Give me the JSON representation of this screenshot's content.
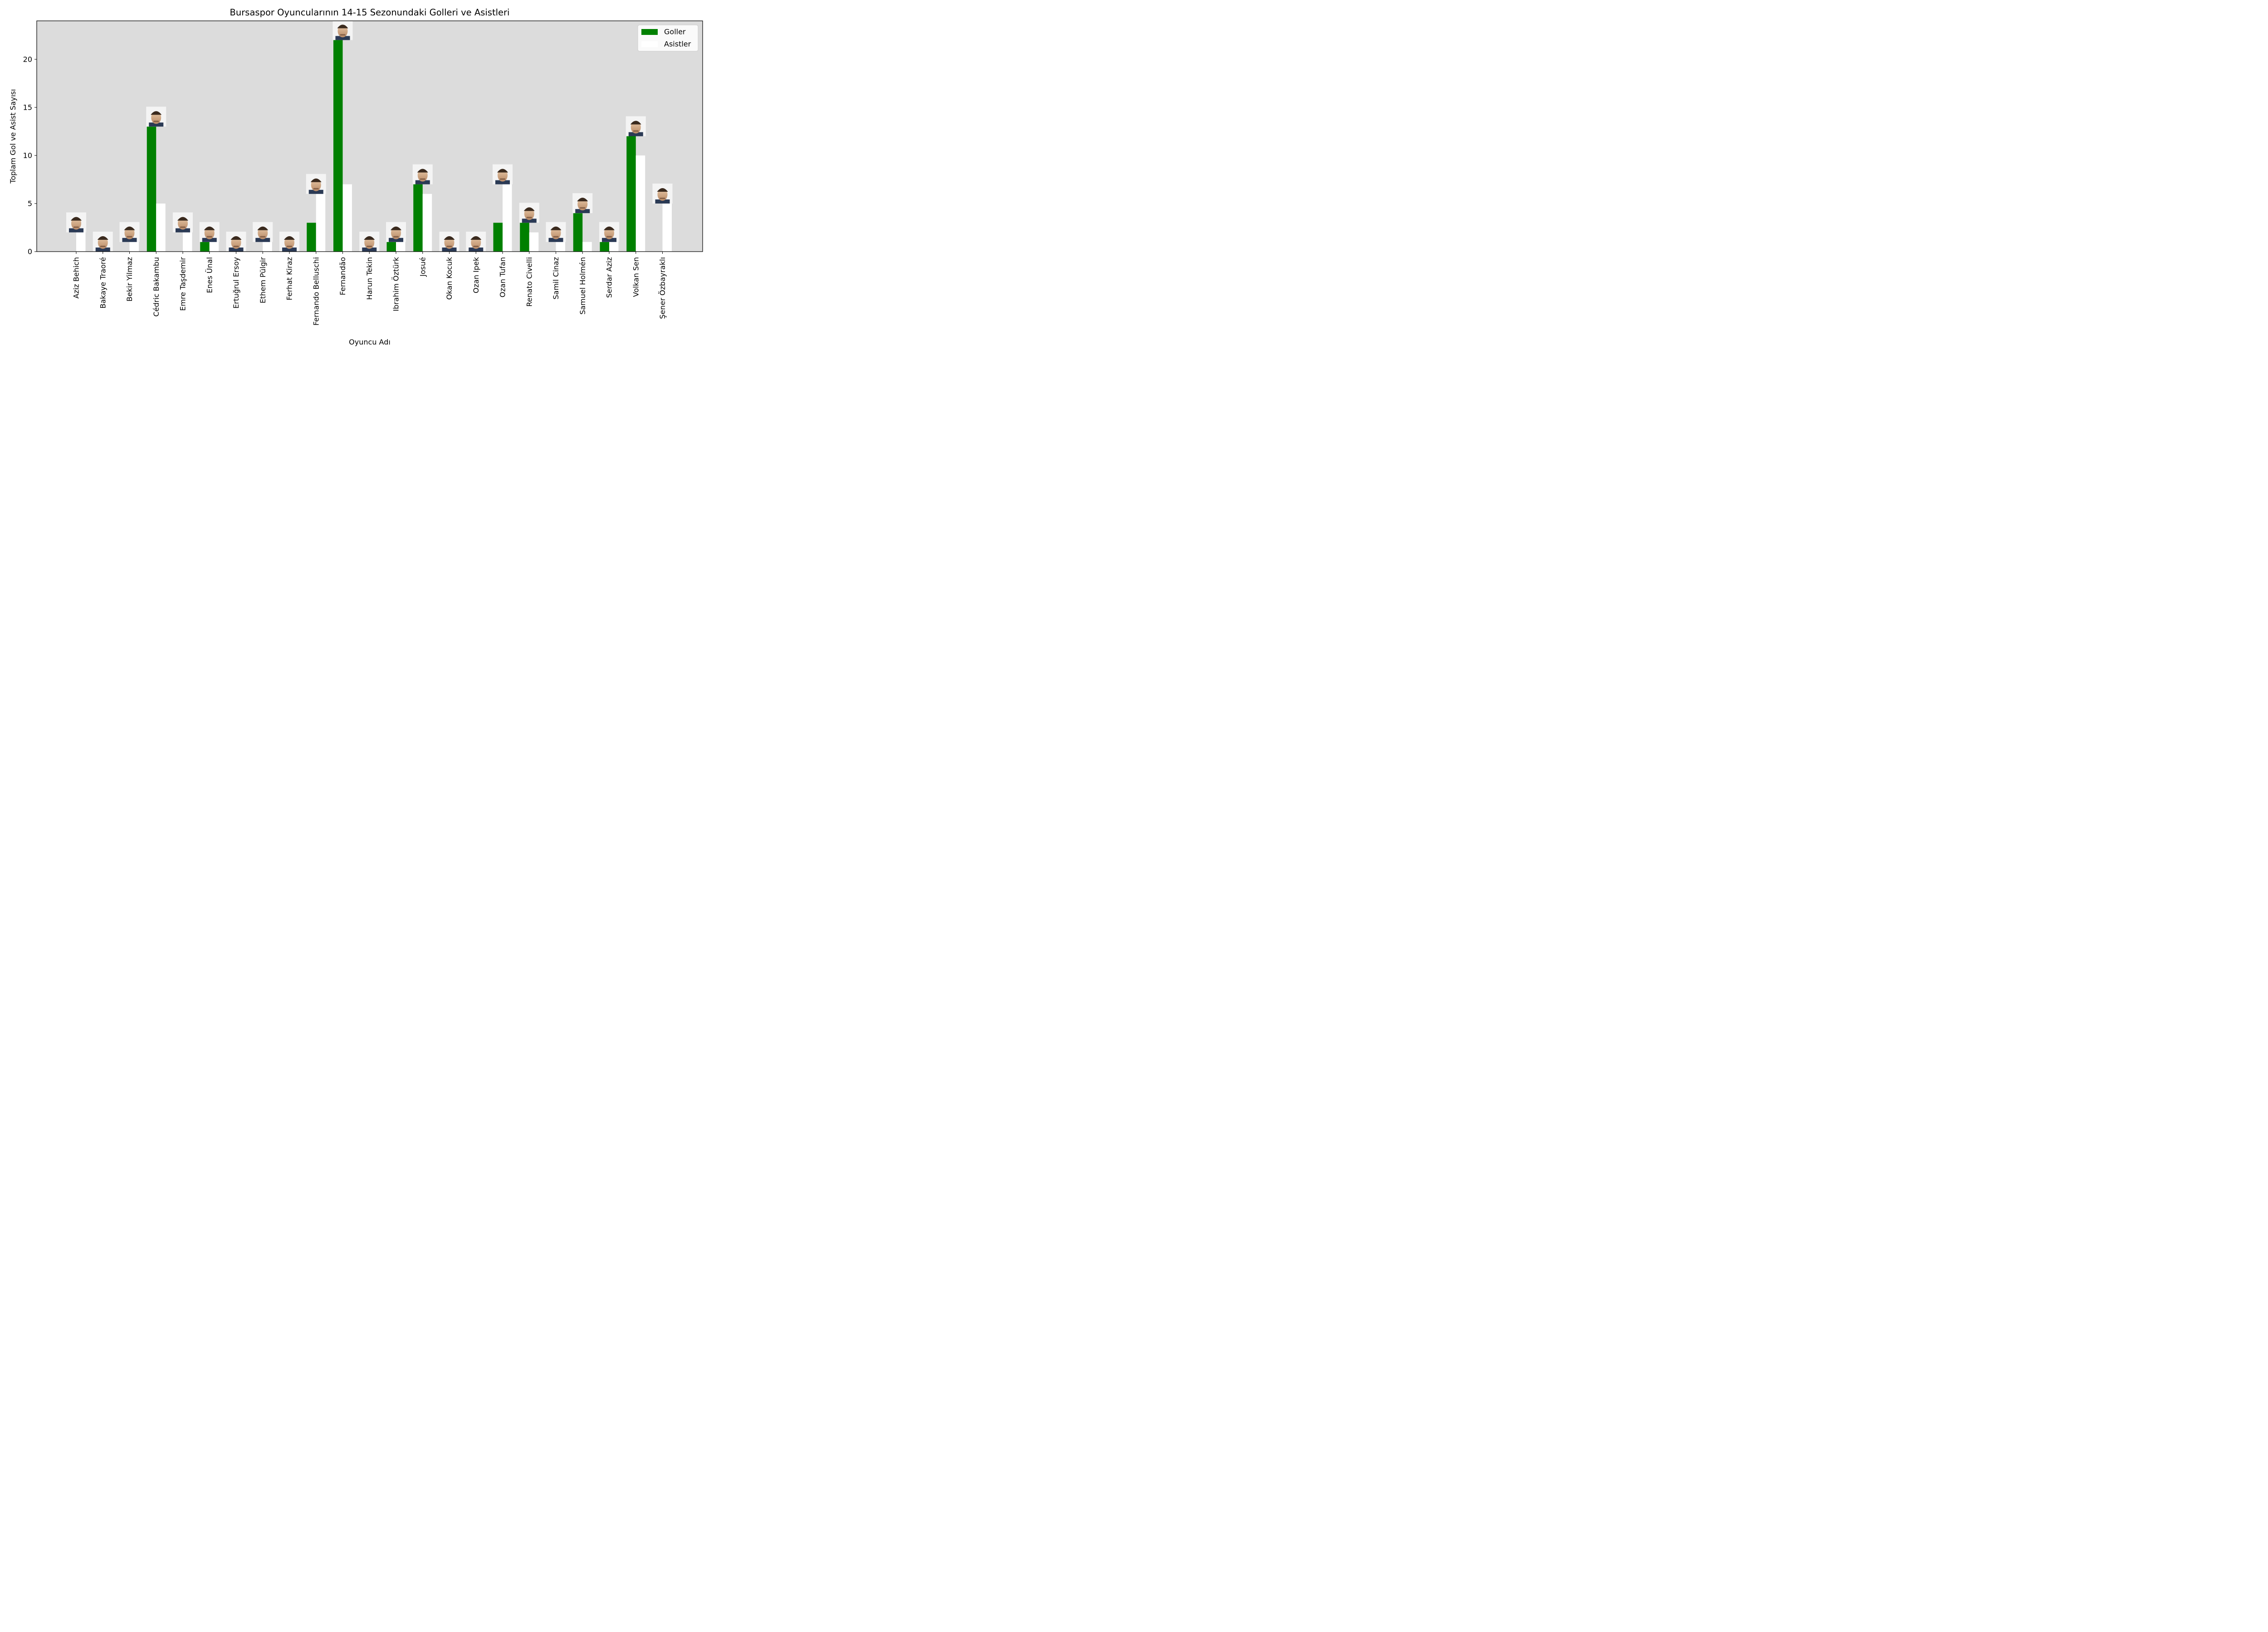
{
  "chart_data": {
    "type": "bar",
    "title": "Bursaspor Oyuncularının 14-15 Sezonundaki Golleri ve Asistleri",
    "xlabel": "Oyuncu Adı",
    "ylabel": "Toplam Gol ve Asist Sayısı",
    "ylim": [
      0,
      24
    ],
    "yticks": [
      0,
      5,
      10,
      15,
      20
    ],
    "grid": false,
    "legend_position": "top-right",
    "background_color": "#dcdcdc",
    "categories": [
      "Aziz Behich",
      "Bakaye Traoré",
      "Bekir Yilmaz",
      "Cédric Bakambu",
      "Emre Taşdemir",
      "Enes Ünal",
      "Ertuğrul Ersoy",
      "Ethem Pülgir",
      "Ferhat Kiraz",
      "Fernando Belluschi",
      "Fernandão",
      "Harun Tekin",
      "Ibrahim Öztürk",
      "Josué",
      "Okan Kocuk",
      "Ozan Ipek",
      "Ozan Tufan",
      "Renato Civelli",
      "Samil Cinaz",
      "Samuel Holmén",
      "Serdar Aziz",
      "Volkan Sen",
      "Şener Özbayraklı"
    ],
    "series": [
      {
        "name": "Goller",
        "color": "#008000",
        "values": [
          0,
          0,
          0,
          13,
          0,
          1,
          0,
          0,
          0,
          3,
          22,
          0,
          1,
          7,
          0,
          0,
          3,
          3,
          0,
          4,
          1,
          12,
          0
        ]
      },
      {
        "name": "Asistler",
        "color": "#ffffff",
        "values": [
          2,
          0,
          1,
          5,
          2,
          1,
          0,
          1,
          0,
          6,
          7,
          0,
          1,
          6,
          0,
          0,
          7,
          2,
          1,
          1,
          1,
          10,
          5
        ]
      }
    ],
    "player_photos": "headshot-icon above each player's taller bar"
  }
}
